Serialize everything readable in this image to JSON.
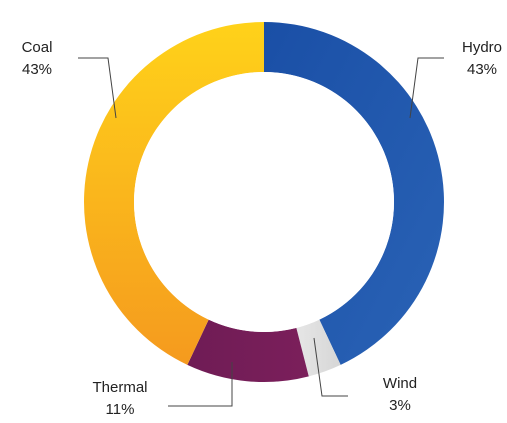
{
  "chart_data": {
    "type": "pie",
    "variant": "donut",
    "title": "",
    "slices": [
      {
        "label": "Hydro",
        "percent_text": "43%",
        "value": 43,
        "color": "#1e56a8"
      },
      {
        "label": "Wind",
        "percent_text": "3%",
        "value": 3,
        "color": "#dcdcdc"
      },
      {
        "label": "Thermal",
        "percent_text": "11%",
        "value": 11,
        "color": "#7a1f5a"
      },
      {
        "label": "Coal",
        "percent_text": "43%",
        "value": 43,
        "color": "#f7b41e"
      }
    ],
    "legend": "none",
    "labels_with_leader_lines": true
  }
}
